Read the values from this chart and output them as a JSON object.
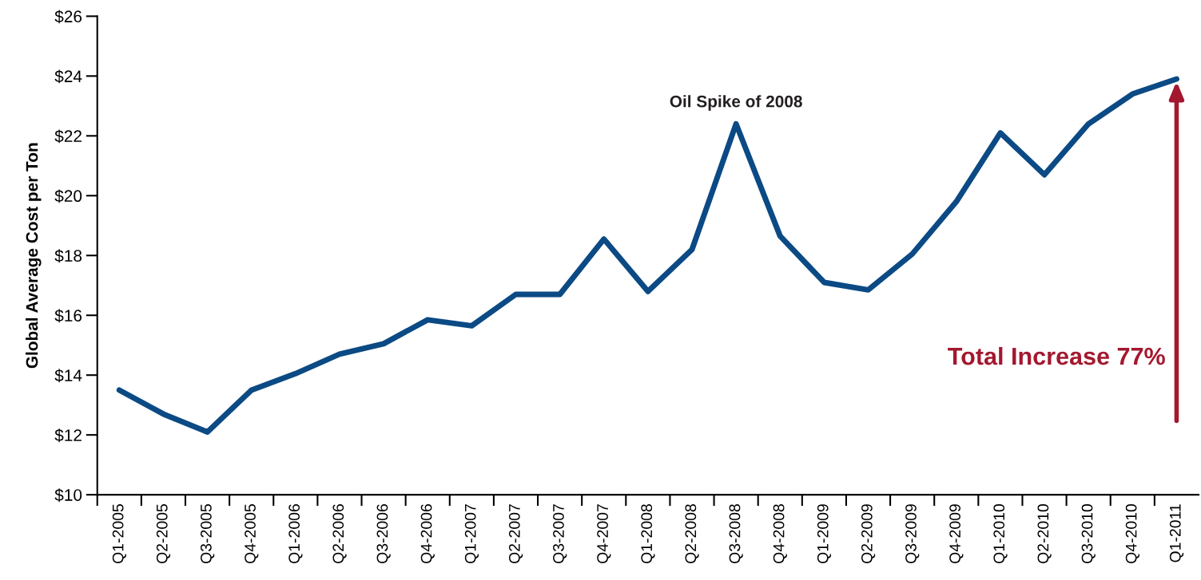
{
  "chart_data": {
    "type": "line",
    "ylabel": "Global Average Cost per Ton",
    "categories": [
      "Q1-2005",
      "Q2-2005",
      "Q3-2005",
      "Q4-2005",
      "Q1-2006",
      "Q2-2006",
      "Q3-2006",
      "Q4-2006",
      "Q1-2007",
      "Q2-2007",
      "Q3-2007",
      "Q4-2007",
      "Q1-2008",
      "Q2-2008",
      "Q3-2008",
      "Q4-2008",
      "Q1-2009",
      "Q2-2009",
      "Q3-2009",
      "Q4-2009",
      "Q1-2010",
      "Q2-2010",
      "Q3-2010",
      "Q4-2010",
      "Q1-2011"
    ],
    "series": [
      {
        "color": "#0b4a84",
        "values": [
          13.5,
          12.7,
          12.1,
          13.5,
          14.05,
          14.7,
          15.05,
          15.85,
          15.65,
          16.7,
          16.7,
          18.55,
          16.8,
          18.2,
          22.4,
          18.65,
          17.1,
          16.85,
          18.05,
          19.8,
          22.1,
          20.7,
          22.4,
          23.4,
          23.9
        ]
      }
    ],
    "ylim": [
      10,
      26
    ],
    "yticks": [
      {
        "value": 10,
        "label": "$10"
      },
      {
        "value": 12,
        "label": "$12"
      },
      {
        "value": 14,
        "label": "$14"
      },
      {
        "value": 16,
        "label": "$16"
      },
      {
        "value": 18,
        "label": "$18"
      },
      {
        "value": 20,
        "label": "$20"
      },
      {
        "value": 22,
        "label": "$22"
      },
      {
        "value": 24,
        "label": "$24"
      },
      {
        "value": 26,
        "label": "$26"
      }
    ],
    "annotations": [
      {
        "text": "Oil Spike of 2008",
        "x": "Q3-2008",
        "y": 22.4
      },
      "Total Increase 77%"
    ],
    "grid": false,
    "marker": "none",
    "line_style": "solid"
  }
}
